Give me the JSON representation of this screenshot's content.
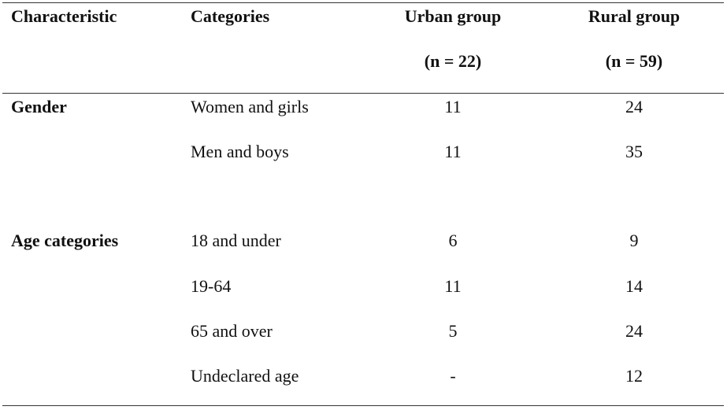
{
  "header": {
    "characteristic": "Characteristic",
    "categories": "Categories",
    "urban": "Urban group",
    "urban_n": "(n = 22)",
    "rural": "Rural group",
    "rural_n": "(n = 59)"
  },
  "rows": [
    {
      "characteristic": "Gender",
      "category": "Women and girls",
      "urban": "11",
      "rural": "24"
    },
    {
      "characteristic": "",
      "category": "Men and boys",
      "urban": "11",
      "rural": "35"
    },
    {
      "characteristic": "Age categories",
      "category": "18 and under",
      "urban": "6",
      "rural": "9"
    },
    {
      "characteristic": "",
      "category": "19-64",
      "urban": "11",
      "rural": "14"
    },
    {
      "characteristic": "",
      "category": "65 and over",
      "urban": "5",
      "rural": "24"
    },
    {
      "characteristic": "",
      "category": "Undeclared age",
      "urban": "-",
      "rural": "12"
    }
  ]
}
